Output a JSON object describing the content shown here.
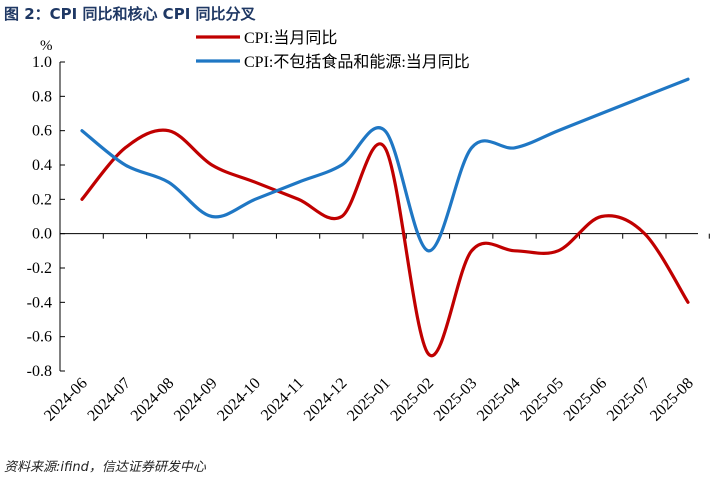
{
  "figure_title": "图 2：CPI 同比和核心 CPI 同比分叉",
  "source": "资料来源:ifind，信达证券研发中心",
  "chart_data": {
    "type": "line",
    "title": "图 2：CPI 同比和核心 CPI 同比分叉",
    "ylabel": "%",
    "xlabel": "",
    "ylim": [
      -0.8,
      1.0
    ],
    "yticks": [
      1.0,
      0.8,
      0.6,
      0.4,
      0.2,
      0.0,
      -0.2,
      -0.4,
      -0.6,
      -0.8
    ],
    "ytick_labels": [
      "1.0",
      "0.8",
      "0.6",
      "0.4",
      "0.2",
      "0.0",
      "-0.2",
      "-0.4",
      "-0.6",
      "-0.8"
    ],
    "categories": [
      "2024-06",
      "2024-07",
      "2024-08",
      "2024-09",
      "2024-10",
      "2024-11",
      "2024-12",
      "2025-01",
      "2025-02",
      "2025-03",
      "2025-04",
      "2025-05",
      "2025-06",
      "2025-07",
      "2025-08"
    ],
    "legend_position": "top-center",
    "series": [
      {
        "name": "CPI:当月同比",
        "color": "#c00000",
        "values": [
          0.2,
          0.5,
          0.6,
          0.4,
          0.3,
          0.2,
          0.1,
          0.5,
          -0.7,
          -0.1,
          -0.1,
          -0.1,
          0.1,
          0.0,
          -0.4
        ]
      },
      {
        "name": "CPI:不包括食品和能源:当月同比",
        "color": "#1f77c4",
        "values": [
          0.6,
          0.4,
          0.3,
          0.1,
          0.2,
          0.3,
          0.4,
          0.6,
          -0.1,
          0.5,
          0.5,
          0.6,
          0.7,
          0.8,
          0.9
        ]
      }
    ]
  }
}
